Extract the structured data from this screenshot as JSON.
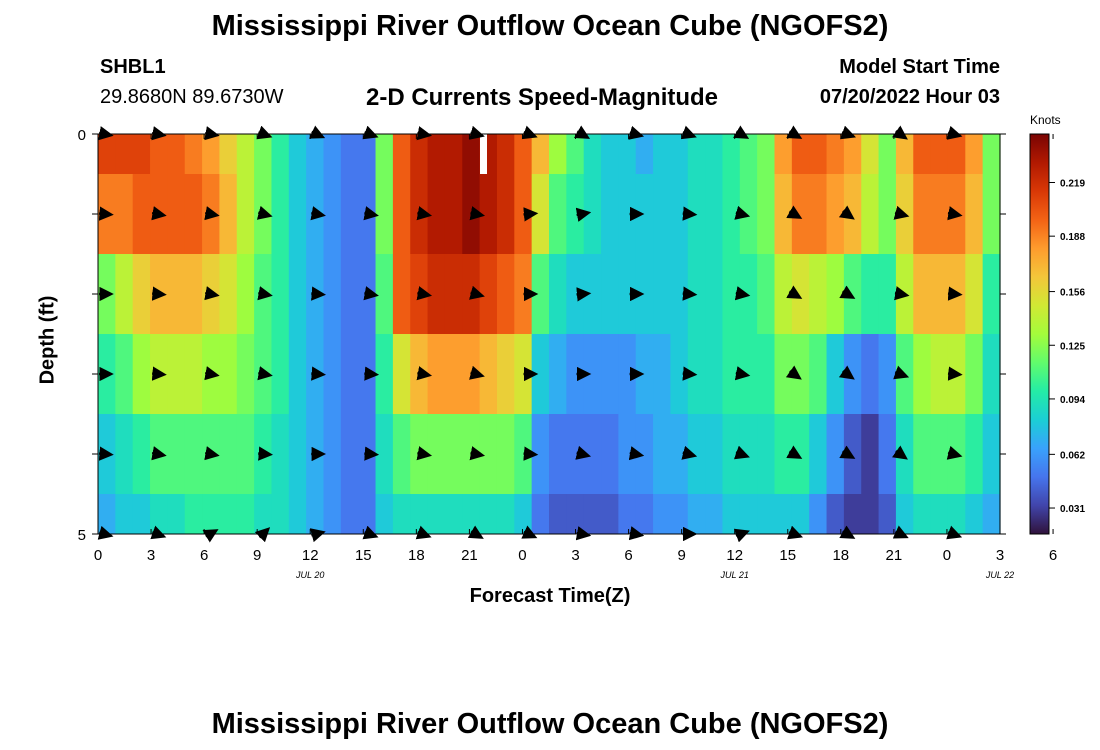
{
  "header": {
    "title": "Mississippi River Outflow Ocean Cube (NGOFS2)",
    "station": "SHBL1",
    "coords": "29.8680N  89.6730W",
    "subtitle": "2-D Currents Speed-Magnitude",
    "model_start_label": "Model Start Time",
    "model_start_value": "07/20/2022 Hour 03"
  },
  "footer": {
    "title_repeat": "Mississippi River Outflow Ocean Cube (NGOFS2)"
  },
  "colors": {
    "ramp": [
      "#30123b",
      "#4145ab",
      "#4675ed",
      "#39a2fc",
      "#1bcfd4",
      "#24eca6",
      "#61fc6c",
      "#a4fc3b",
      "#d1e834",
      "#f3c63a",
      "#fe9b2d",
      "#f36315",
      "#d93806",
      "#b11901",
      "#7a0403"
    ]
  },
  "chart_data": {
    "type": "heatmap",
    "title": "2-D Currents Speed-Magnitude",
    "xlabel": "Forecast Time(Z)",
    "ylabel": "Depth (ft)",
    "units": "Knots",
    "x_hours_from_start": [
      0,
      51
    ],
    "x_ticks": [
      "0",
      "3",
      "6",
      "9",
      "12",
      "15",
      "18",
      "21",
      "0",
      "3",
      "6",
      "9",
      "12",
      "15",
      "18",
      "21",
      "0",
      "3",
      "6"
    ],
    "date_labels": [
      {
        "label": "JUL 20",
        "at_tick": 4
      },
      {
        "label": "JUL 21",
        "at_tick": 12
      },
      {
        "label": "JUL 22",
        "at_tick": 17
      }
    ],
    "y_ticks": [
      "0",
      "5"
    ],
    "ylim": [
      0,
      5
    ],
    "depth_bands": 5,
    "colorbar": {
      "range": [
        0.016,
        0.247
      ],
      "ticks": [
        "0.219",
        "0.188",
        "0.156",
        "0.125",
        "0.094",
        "0.062",
        "0.031"
      ]
    },
    "speed_knots_by_depth_layer": [
      [
        0.21,
        0.21,
        0.21,
        0.2,
        0.2,
        0.19,
        0.18,
        0.16,
        0.14,
        0.12,
        0.1,
        0.08,
        0.07,
        0.06,
        0.05,
        0.05,
        0.12,
        0.2,
        0.22,
        0.23,
        0.23,
        0.24,
        0.23,
        0.22,
        0.2,
        0.17,
        0.13,
        0.11,
        0.09,
        0.08,
        0.08,
        0.07,
        0.08,
        0.08,
        0.09,
        0.09,
        0.1,
        0.11,
        0.12,
        0.18,
        0.2,
        0.2,
        0.19,
        0.18,
        0.15,
        0.12,
        0.17,
        0.2,
        0.2,
        0.2,
        0.18,
        0.12
      ],
      [
        0.19,
        0.19,
        0.2,
        0.2,
        0.2,
        0.2,
        0.19,
        0.17,
        0.14,
        0.12,
        0.1,
        0.08,
        0.07,
        0.06,
        0.05,
        0.05,
        0.12,
        0.2,
        0.22,
        0.23,
        0.23,
        0.24,
        0.23,
        0.22,
        0.2,
        0.15,
        0.11,
        0.1,
        0.09,
        0.08,
        0.08,
        0.08,
        0.08,
        0.08,
        0.09,
        0.09,
        0.1,
        0.11,
        0.12,
        0.17,
        0.19,
        0.19,
        0.18,
        0.17,
        0.14,
        0.12,
        0.16,
        0.19,
        0.19,
        0.19,
        0.17,
        0.12
      ],
      [
        0.12,
        0.14,
        0.16,
        0.17,
        0.17,
        0.17,
        0.16,
        0.15,
        0.13,
        0.11,
        0.1,
        0.08,
        0.07,
        0.06,
        0.05,
        0.05,
        0.11,
        0.2,
        0.21,
        0.22,
        0.22,
        0.22,
        0.21,
        0.2,
        0.19,
        0.11,
        0.09,
        0.08,
        0.08,
        0.08,
        0.08,
        0.08,
        0.08,
        0.08,
        0.09,
        0.09,
        0.1,
        0.1,
        0.11,
        0.14,
        0.15,
        0.14,
        0.13,
        0.11,
        0.1,
        0.1,
        0.14,
        0.17,
        0.17,
        0.17,
        0.15,
        0.1
      ],
      [
        0.1,
        0.11,
        0.13,
        0.14,
        0.14,
        0.14,
        0.13,
        0.13,
        0.12,
        0.11,
        0.1,
        0.08,
        0.07,
        0.06,
        0.05,
        0.05,
        0.1,
        0.15,
        0.17,
        0.18,
        0.18,
        0.18,
        0.17,
        0.16,
        0.15,
        0.08,
        0.07,
        0.06,
        0.06,
        0.06,
        0.06,
        0.07,
        0.07,
        0.08,
        0.09,
        0.09,
        0.1,
        0.1,
        0.1,
        0.12,
        0.12,
        0.11,
        0.08,
        0.06,
        0.05,
        0.06,
        0.11,
        0.13,
        0.14,
        0.14,
        0.12,
        0.09
      ],
      [
        0.08,
        0.09,
        0.1,
        0.11,
        0.11,
        0.11,
        0.11,
        0.11,
        0.11,
        0.1,
        0.09,
        0.08,
        0.07,
        0.06,
        0.05,
        0.05,
        0.09,
        0.11,
        0.12,
        0.12,
        0.12,
        0.12,
        0.12,
        0.12,
        0.11,
        0.06,
        0.05,
        0.05,
        0.05,
        0.05,
        0.06,
        0.06,
        0.07,
        0.07,
        0.08,
        0.08,
        0.09,
        0.09,
        0.09,
        0.1,
        0.1,
        0.08,
        0.06,
        0.04,
        0.03,
        0.05,
        0.09,
        0.11,
        0.11,
        0.11,
        0.1,
        0.08
      ],
      [
        0.07,
        0.08,
        0.08,
        0.09,
        0.09,
        0.1,
        0.1,
        0.1,
        0.1,
        0.09,
        0.09,
        0.08,
        0.07,
        0.06,
        0.05,
        0.05,
        0.08,
        0.09,
        0.09,
        0.09,
        0.09,
        0.09,
        0.09,
        0.09,
        0.08,
        0.05,
        0.04,
        0.04,
        0.04,
        0.04,
        0.05,
        0.05,
        0.06,
        0.06,
        0.07,
        0.07,
        0.08,
        0.08,
        0.08,
        0.08,
        0.08,
        0.06,
        0.04,
        0.03,
        0.03,
        0.04,
        0.08,
        0.09,
        0.09,
        0.09,
        0.08,
        0.07
      ]
    ],
    "arrow_hours": [
      0,
      3,
      6,
      9,
      12,
      15,
      18,
      21,
      24,
      27,
      30,
      33,
      36,
      39,
      42,
      45,
      48
    ],
    "arrow_direction_deg_by_depth_layer": [
      [
        10,
        10,
        10,
        20,
        25,
        20,
        10,
        15,
        20,
        30,
        15,
        20,
        30,
        30,
        20,
        35,
        15
      ],
      [
        5,
        10,
        10,
        15,
        10,
        10,
        10,
        10,
        -5,
        -10,
        0,
        5,
        15,
        30,
        35,
        15,
        10
      ],
      [
        0,
        5,
        10,
        10,
        5,
        10,
        10,
        15,
        0,
        -5,
        0,
        5,
        10,
        30,
        30,
        10,
        5
      ],
      [
        0,
        5,
        10,
        10,
        5,
        5,
        10,
        15,
        0,
        0,
        0,
        5,
        10,
        35,
        35,
        20,
        5
      ],
      [
        5,
        10,
        10,
        5,
        0,
        5,
        10,
        10,
        5,
        15,
        10,
        15,
        20,
        30,
        30,
        35,
        15
      ],
      [
        15,
        20,
        -30,
        -45,
        -15,
        20,
        20,
        30,
        25,
        10,
        10,
        0,
        -20,
        20,
        30,
        25,
        20
      ]
    ]
  }
}
